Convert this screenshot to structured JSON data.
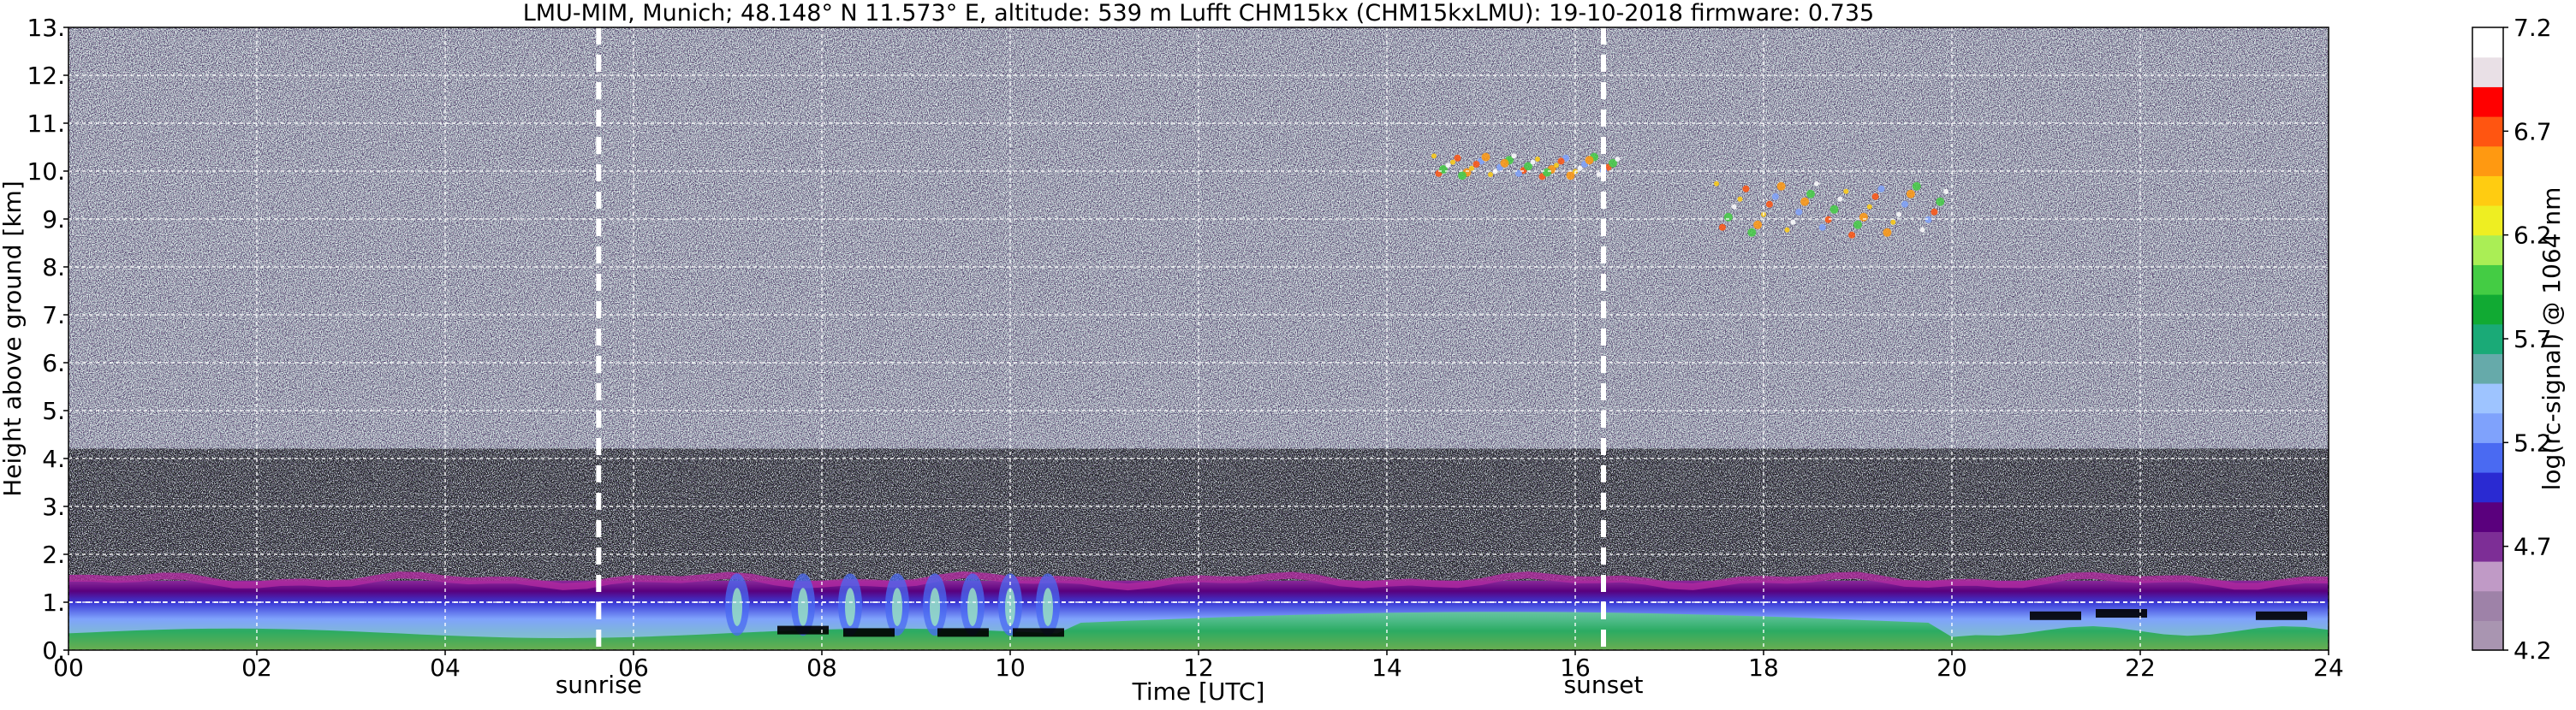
{
  "chart_data": {
    "type": "heatmap",
    "title": "LMU-MIM, Munich; 48.148° N 11.573° E, altitude: 539 m    Lufft CHM15kx (CHM15kxLMU): 19-10-2018    firmware: 0.735",
    "xlabel": "Time [UTC]",
    "ylabel": "Height above ground [km]",
    "xlim": [
      0,
      24
    ],
    "ylim": [
      0,
      13
    ],
    "x_ticks": [
      "00",
      "02",
      "04",
      "06",
      "08",
      "10",
      "12",
      "14",
      "16",
      "18",
      "20",
      "22",
      "24"
    ],
    "y_ticks": [
      "0.",
      "1.",
      "2.",
      "3.",
      "4.",
      "5.",
      "6.",
      "7.",
      "8.",
      "9.",
      "10.",
      "11.",
      "12.",
      "13."
    ],
    "grid": true,
    "colorbar": {
      "label": "log(rc-signal) @ 1064 nm",
      "range": [
        4.2,
        7.2
      ],
      "ticks": [
        "4.2",
        "4.7",
        "5.2",
        "5.7",
        "6.2",
        "6.7",
        "7.2"
      ],
      "colors": [
        "#a995b1",
        "#9e82a8",
        "#c09ac6",
        "#7d2e96",
        "#5a007d",
        "#2a2ad2",
        "#4a6af2",
        "#7fa2fc",
        "#9ec4ff",
        "#66aaaa",
        "#1aaa77",
        "#11aa33",
        "#44cc44",
        "#aaee55",
        "#eeee22",
        "#ffcc11",
        "#ff9911",
        "#ff5511",
        "#ff0000",
        "#e9e0e6",
        "#ffffff"
      ]
    },
    "annotations": [
      {
        "label": "sunrise",
        "x": 5.63
      },
      {
        "label": "sunset",
        "x": 16.3
      }
    ],
    "cloud_base_km": [
      {
        "time": 7.8,
        "height": 0.4
      },
      {
        "time": 8.5,
        "height": 0.35
      },
      {
        "time": 9.5,
        "height": 0.35
      },
      {
        "time": 10.3,
        "height": 0.35
      },
      {
        "time": 21.1,
        "height": 0.7
      },
      {
        "time": 21.8,
        "height": 0.75
      },
      {
        "time": 23.5,
        "height": 0.7
      }
    ],
    "cirrus_km": [
      {
        "time_start": 14.5,
        "time_end": 16.5,
        "height": 10.1
      },
      {
        "time_start": 17.5,
        "time_end": 20.0,
        "height": 9.2
      }
    ]
  },
  "colors": {
    "background": "#51406b",
    "noise_light": "#c8b8d8",
    "grid": "#ffffff",
    "marker_line": "#ffffff"
  }
}
